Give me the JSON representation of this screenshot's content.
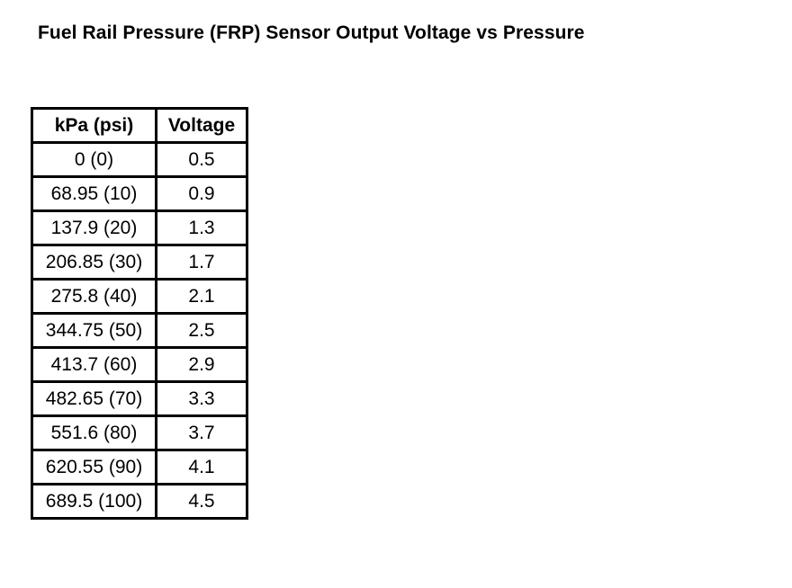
{
  "title": "Fuel Rail Pressure (FRP) Sensor Output Voltage vs Pressure",
  "table": {
    "headers": [
      "kPa (psi)",
      "Voltage"
    ],
    "rows": [
      [
        "0 (0)",
        "0.5"
      ],
      [
        "68.95 (10)",
        "0.9"
      ],
      [
        "137.9 (20)",
        "1.3"
      ],
      [
        "206.85 (30)",
        "1.7"
      ],
      [
        "275.8 (40)",
        "2.1"
      ],
      [
        "344.75 (50)",
        "2.5"
      ],
      [
        "413.7 (60)",
        "2.9"
      ],
      [
        "482.65 (70)",
        "3.3"
      ],
      [
        "551.6 (80)",
        "3.7"
      ],
      [
        "620.55 (90)",
        "4.1"
      ],
      [
        "689.5 (100)",
        "4.5"
      ]
    ]
  }
}
